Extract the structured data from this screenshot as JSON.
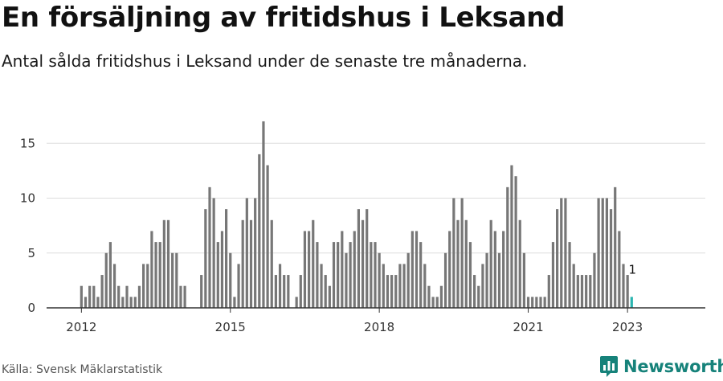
{
  "title": "En försäljning av fritidshus i Leksand",
  "subtitle": "Antal sålda fritidshus i Leksand under de senaste tre månaderna.",
  "source": "Källa: Svensk Mäklarstatistik",
  "brand": "Newsworthy",
  "colors": {
    "bar": "#777777",
    "highlight": "#2bb5b0",
    "grid": "#dddddd",
    "brand": "#16827a"
  },
  "chart_data": {
    "type": "bar",
    "title": "En försäljning av fritidshus i Leksand",
    "subtitle": "Antal sålda fritidshus i Leksand under de senaste tre månaderna.",
    "x_start": "2011-12",
    "x_end": "2023-01",
    "x_tick_labels": [
      "2012",
      "2015",
      "2018",
      "2021",
      "2023"
    ],
    "x_tick_dates": [
      "2012-01",
      "2015-01",
      "2018-01",
      "2021-01",
      "2023-01"
    ],
    "yticks": [
      0,
      5,
      10,
      15
    ],
    "ylim": [
      0,
      17.8
    ],
    "grid": true,
    "values": [
      null,
      2,
      1,
      2,
      2,
      1,
      3,
      5,
      6,
      4,
      2,
      1,
      2,
      1,
      1,
      2,
      4,
      4,
      7,
      6,
      6,
      8,
      8,
      5,
      5,
      2,
      2,
      null,
      null,
      null,
      3,
      9,
      11,
      10,
      6,
      7,
      9,
      5,
      1,
      4,
      8,
      10,
      8,
      10,
      14,
      17,
      13,
      8,
      3,
      4,
      3,
      3,
      null,
      1,
      3,
      7,
      7,
      8,
      6,
      4,
      3,
      2,
      6,
      6,
      7,
      5,
      6,
      7,
      9,
      8,
      9,
      6,
      6,
      5,
      4,
      3,
      3,
      3,
      4,
      4,
      5,
      7,
      7,
      6,
      4,
      2,
      1,
      1,
      2,
      5,
      7,
      10,
      8,
      10,
      8,
      6,
      3,
      2,
      4,
      5,
      8,
      7,
      5,
      7,
      11,
      13,
      12,
      8,
      5,
      1,
      1,
      1,
      1,
      1,
      3,
      6,
      9,
      10,
      10,
      6,
      4,
      3,
      3,
      3,
      3,
      5,
      10,
      10,
      10,
      9,
      11,
      7,
      4,
      3,
      1
    ],
    "highlight_last": true,
    "last_value_label": "1"
  }
}
